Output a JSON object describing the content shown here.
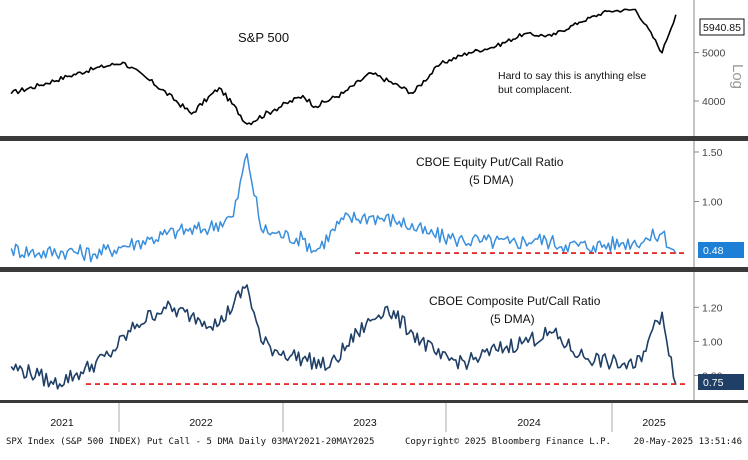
{
  "colors": {
    "background": "#ffffff",
    "spx_line": "#000000",
    "equity_line": "#3a8fdc",
    "composite_line": "#1f3f66",
    "divider": "#3a3a3a",
    "reference_line": "#e01010",
    "equity_badge": "#1e7fd6",
    "composite_badge": "#1f3f66"
  },
  "panels": {
    "spx": {
      "title": "S&P 500",
      "annotation_line1": "Hard to say this is anything else",
      "annotation_line2": "but complacent.",
      "scale_label": "Log",
      "last_value_label": "5940.85",
      "ticks": [
        "4000",
        "5000"
      ]
    },
    "equity": {
      "title_line1": "CBOE Equity Put/Call Ratio",
      "title_line2": "(5 DMA)",
      "last_value_label": "0.48",
      "ticks": [
        "1.00",
        "1.50"
      ]
    },
    "composite": {
      "title_line1": "CBOE Composite Put/Call Ratio",
      "title_line2": "(5 DMA)",
      "last_value_label": "0.75",
      "ticks": [
        "0.80",
        "1.00",
        "1.20"
      ]
    }
  },
  "x_axis": {
    "years": [
      "2021",
      "2022",
      "2023",
      "2024",
      "2025"
    ]
  },
  "footer": {
    "left": "SPX Index (S&P 500 INDEX) Put Call - 5 DMA  Daily 03MAY2021-20MAY2025",
    "center": "Copyright© 2025 Bloomberg Finance L.P.",
    "right": "20-May-2025 13:51:46"
  },
  "chart_data": [
    {
      "type": "line",
      "title": "S&P 500",
      "ylabel": "",
      "y_scale": "log",
      "ylim": [
        3500,
        6200
      ],
      "x": [
        "2021-05",
        "2021-07",
        "2021-09",
        "2021-11",
        "2022-01",
        "2022-03",
        "2022-06",
        "2022-08",
        "2022-10",
        "2022-12",
        "2023-02",
        "2023-03",
        "2023-05",
        "2023-07",
        "2023-10",
        "2023-12",
        "2024-02",
        "2024-04",
        "2024-06",
        "2024-08",
        "2024-10",
        "2024-12",
        "2025-02",
        "2025-04",
        "2025-05"
      ],
      "series": [
        {
          "name": "",
          "values": [
            4150,
            4300,
            4480,
            4650,
            4780,
            4400,
            3770,
            4250,
            3600,
            3850,
            4100,
            3900,
            4150,
            4550,
            4150,
            4750,
            5000,
            5150,
            5450,
            5400,
            5750,
            6050,
            6100,
            5000,
            5940.85
          ]
        }
      ]
    },
    {
      "type": "line",
      "title": "CBOE Equity Put/Call Ratio (5 DMA)",
      "ylim": [
        0.38,
        1.55
      ],
      "x": [
        "2021-05",
        "2021-07",
        "2021-09",
        "2021-11",
        "2022-01",
        "2022-03",
        "2022-05",
        "2022-07",
        "2022-09",
        "2022-10",
        "2022-11",
        "2022-12",
        "2023-02",
        "2023-03",
        "2023-05",
        "2023-07",
        "2023-09",
        "2023-11",
        "2024-01",
        "2024-03",
        "2024-05",
        "2024-07",
        "2024-09",
        "2024-11",
        "2025-01",
        "2025-03",
        "2025-04",
        "2025-05"
      ],
      "series": [
        {
          "name": "",
          "values": [
            0.52,
            0.48,
            0.5,
            0.47,
            0.55,
            0.62,
            0.7,
            0.72,
            0.85,
            1.48,
            0.72,
            0.68,
            0.62,
            0.5,
            0.82,
            0.85,
            0.8,
            0.68,
            0.62,
            0.6,
            0.58,
            0.62,
            0.56,
            0.55,
            0.58,
            0.62,
            0.68,
            0.48
          ]
        }
      ],
      "reference_line": 0.48
    },
    {
      "type": "line",
      "title": "CBOE Composite Put/Call Ratio (5 DMA)",
      "ylim": [
        0.68,
        1.36
      ],
      "x": [
        "2021-05",
        "2021-07",
        "2021-08",
        "2021-10",
        "2021-12",
        "2022-02",
        "2022-04",
        "2022-06",
        "2022-08",
        "2022-10",
        "2022-11",
        "2022-12",
        "2023-02",
        "2023-04",
        "2023-06",
        "2023-08",
        "2023-10",
        "2023-12",
        "2024-02",
        "2024-04",
        "2024-06",
        "2024-08",
        "2024-10",
        "2024-12",
        "2025-02",
        "2025-03",
        "2025-04",
        "2025-05"
      ],
      "series": [
        {
          "name": "",
          "values": [
            0.85,
            0.8,
            0.75,
            0.82,
            0.92,
            1.1,
            1.2,
            1.15,
            1.1,
            1.33,
            1.0,
            0.95,
            0.9,
            0.85,
            1.05,
            1.2,
            1.05,
            0.9,
            0.88,
            0.95,
            1.0,
            1.05,
            0.92,
            0.88,
            0.85,
            1.0,
            1.17,
            0.75
          ]
        }
      ],
      "reference_line": 0.75
    }
  ]
}
